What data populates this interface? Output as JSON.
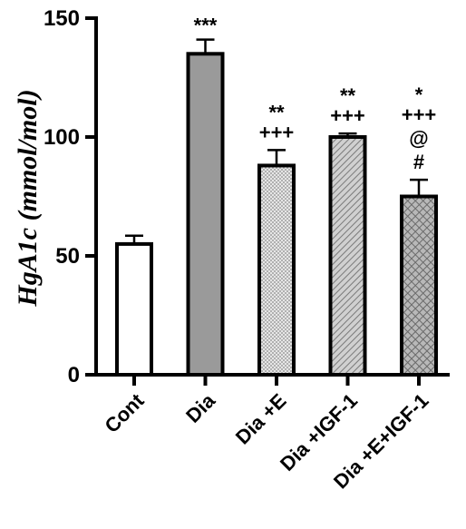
{
  "chart_data": {
    "type": "bar",
    "title": "",
    "xlabel": "",
    "ylabel": "HgA1c (mmol/mol)",
    "ylim": [
      0,
      150
    ],
    "yticks": [
      0,
      50,
      100,
      150
    ],
    "grid": false,
    "categories": [
      "Cont",
      "Dia",
      "Dia +E",
      "Dia +IGF-1",
      "Dia +E+IGF-1"
    ],
    "values": [
      55,
      135,
      88,
      100,
      75
    ],
    "errors": [
      3.5,
      6,
      6.5,
      1.5,
      7
    ],
    "annotations": [
      [],
      [
        "***"
      ],
      [
        "**",
        "+++"
      ],
      [
        "**",
        "+++"
      ],
      [
        "*",
        "+++",
        "@",
        "#"
      ]
    ],
    "fills": [
      "white",
      "solid-gray",
      "dotted",
      "diagonal-hatch",
      "crosshatch"
    ],
    "colors": {
      "edge": "#000000",
      "solid": "#9a9a9a",
      "pattern": "#7a7a7a"
    }
  }
}
